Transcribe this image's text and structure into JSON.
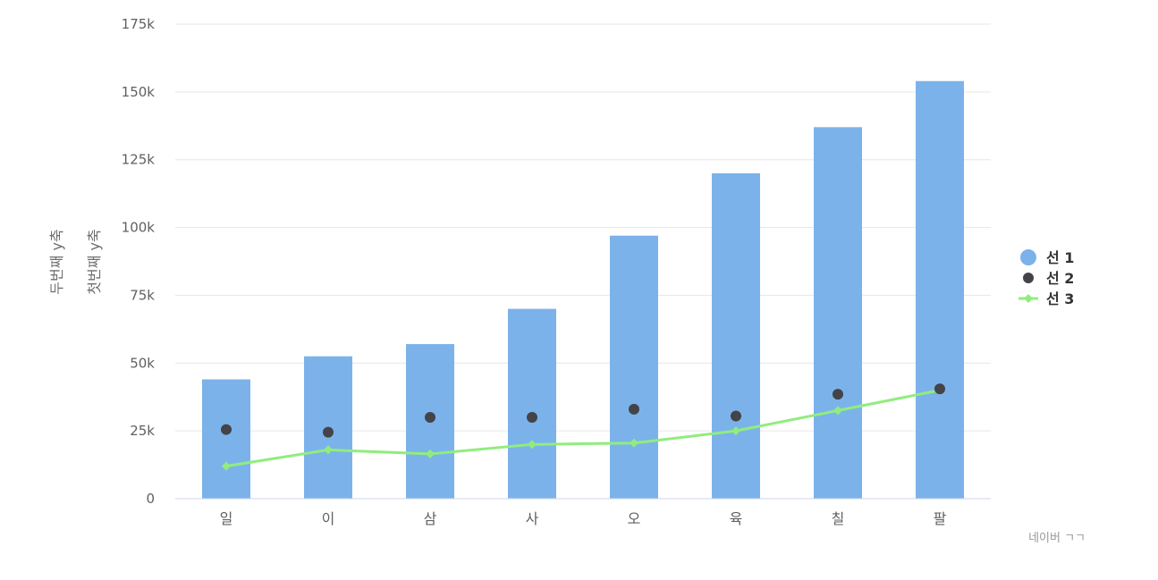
{
  "chart_data": {
    "type": "bar",
    "categories": [
      "일",
      "이",
      "삼",
      "사",
      "오",
      "육",
      "칠",
      "팔"
    ],
    "series": [
      {
        "name": "선 1",
        "type": "bar",
        "color": "#7cb2ea",
        "values": [
          44000,
          52500,
          57000,
          70000,
          97000,
          120000,
          137000,
          154000
        ]
      },
      {
        "name": "선 2",
        "type": "scatter",
        "color": "#434348",
        "values": [
          25500,
          24500,
          30000,
          30000,
          33000,
          30500,
          38500,
          40500
        ]
      },
      {
        "name": "선 3",
        "type": "line",
        "color": "#90ed7d",
        "values": [
          12000,
          18000,
          16500,
          20000,
          20500,
          25000,
          32500,
          40000
        ]
      }
    ],
    "ylabel": "첫번째 y축",
    "ylabel_secondary": "두번째 y축",
    "yticks": [
      "0",
      "25k",
      "50k",
      "75k",
      "100k",
      "125k",
      "150k",
      "175k"
    ],
    "ylim": [
      0,
      175000
    ],
    "grid": true,
    "legend_position": "right"
  },
  "credit": "네이버 ㄱㄱ"
}
